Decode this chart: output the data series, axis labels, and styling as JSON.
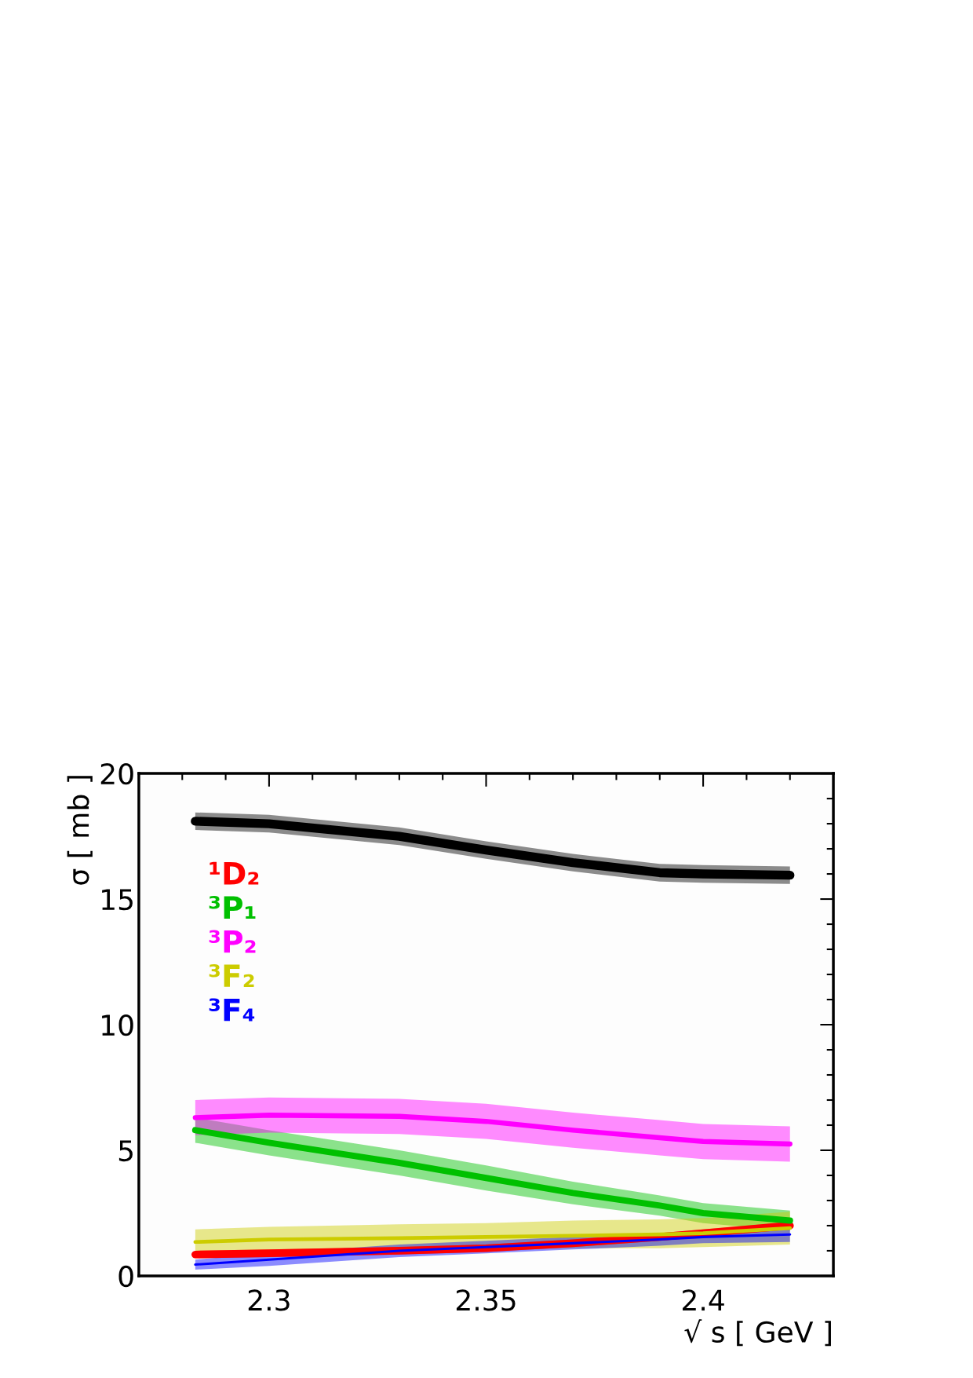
{
  "chart_data": {
    "type": "line",
    "xlabel": "√ s [ GeV ]",
    "ylabel": "σ [ mb ]",
    "xlim": [
      2.27,
      2.43
    ],
    "ylim": [
      0,
      20
    ],
    "xticks": [
      2.3,
      2.35,
      2.4
    ],
    "yticks": [
      0,
      5,
      10,
      15,
      20
    ],
    "grid": false,
    "legend": "left",
    "line_style": "solid",
    "marker": "none",
    "x": [
      2.283,
      2.3,
      2.33,
      2.35,
      2.37,
      2.39,
      2.4,
      2.42
    ],
    "series": [
      {
        "color": "#000000",
        "values": [
          18.1,
          18.0,
          17.5,
          16.95,
          16.45,
          16.05,
          16.0,
          15.95
        ],
        "lower": [
          17.75,
          17.65,
          17.15,
          16.6,
          16.1,
          15.7,
          15.65,
          15.6
        ],
        "upper": [
          18.45,
          18.35,
          17.85,
          17.3,
          16.8,
          16.4,
          16.35,
          16.3
        ]
      },
      {
        "name": "¹D₂",
        "color": "#ff0000",
        "values": [
          0.85,
          0.9,
          1.0,
          1.1,
          1.3,
          1.55,
          1.7,
          2.0
        ],
        "lower": [
          0.7,
          0.75,
          0.85,
          0.95,
          1.15,
          1.4,
          1.55,
          1.85
        ],
        "upper": [
          1.0,
          1.05,
          1.15,
          1.25,
          1.45,
          1.7,
          1.85,
          2.15
        ]
      },
      {
        "name": "³P₁",
        "color": "#00c000",
        "values": [
          5.8,
          5.3,
          4.5,
          3.9,
          3.3,
          2.8,
          2.5,
          2.2
        ],
        "lower": [
          5.3,
          4.8,
          4.0,
          3.4,
          2.85,
          2.4,
          2.1,
          1.8
        ],
        "upper": [
          6.3,
          5.8,
          5.0,
          4.4,
          3.75,
          3.2,
          2.9,
          2.6
        ]
      },
      {
        "name": "³P₂",
        "color": "#ff00ff",
        "values": [
          6.3,
          6.4,
          6.35,
          6.15,
          5.8,
          5.5,
          5.35,
          5.25
        ],
        "lower": [
          5.6,
          5.7,
          5.65,
          5.45,
          5.1,
          4.8,
          4.65,
          4.55
        ],
        "upper": [
          7.0,
          7.1,
          7.05,
          6.85,
          6.5,
          6.2,
          6.05,
          5.95
        ]
      },
      {
        "name": "³F₂",
        "color": "#cccc00",
        "values": [
          1.35,
          1.45,
          1.5,
          1.55,
          1.6,
          1.65,
          1.7,
          1.9
        ],
        "lower": [
          0.85,
          0.95,
          1.0,
          1.05,
          1.1,
          1.1,
          1.15,
          1.25
        ],
        "upper": [
          1.85,
          1.95,
          2.05,
          2.1,
          2.2,
          2.25,
          2.3,
          2.55
        ]
      },
      {
        "name": "³F₄",
        "color": "#0000ff",
        "values": [
          0.45,
          0.65,
          1.0,
          1.15,
          1.3,
          1.45,
          1.55,
          1.65
        ],
        "lower": [
          0.25,
          0.4,
          0.75,
          0.9,
          1.05,
          1.2,
          1.3,
          1.35
        ],
        "upper": [
          0.65,
          0.9,
          1.25,
          1.4,
          1.55,
          1.7,
          1.8,
          1.95
        ]
      }
    ]
  }
}
